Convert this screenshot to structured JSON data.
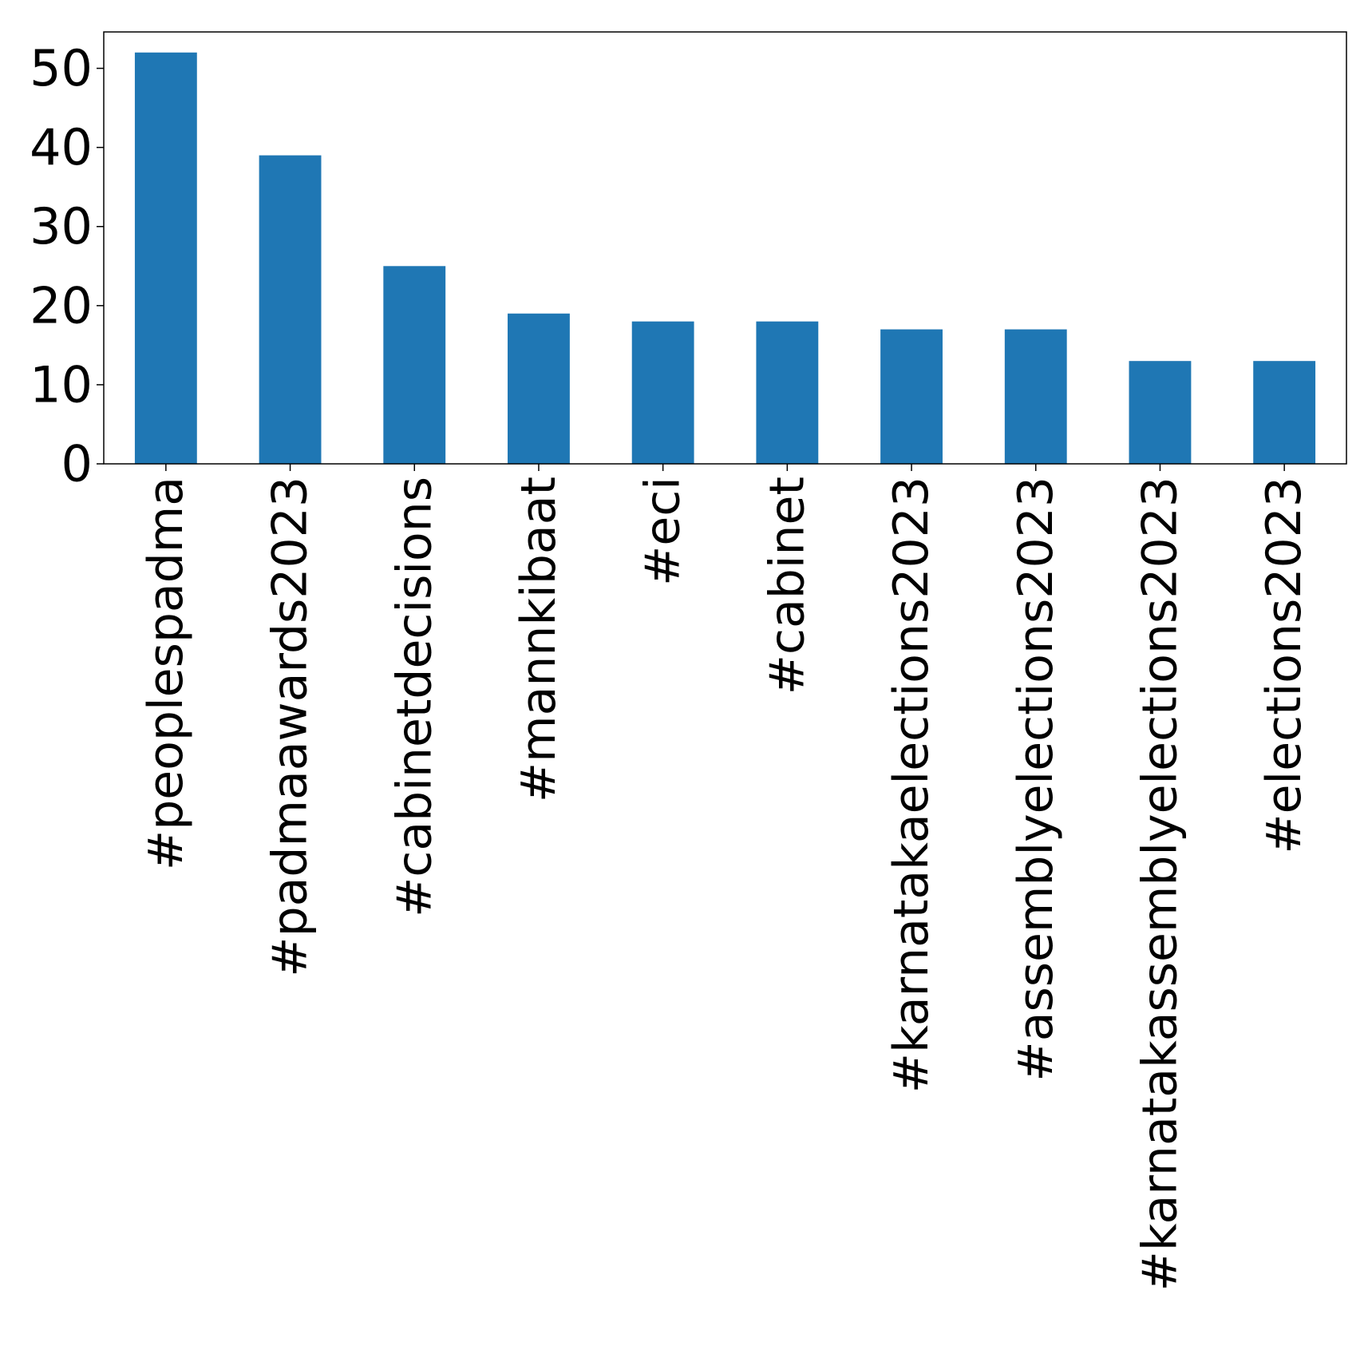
{
  "chart_data": {
    "type": "bar",
    "categories": [
      "#peoplespadma",
      "#padmaawards2023",
      "#cabinetdecisions",
      "#mannkibaat",
      "#eci",
      "#cabinet",
      "#karnatakaelections2023",
      "#assemblyelections2023",
      "#karnatakassemblyelections2023",
      "#elections2023"
    ],
    "values": [
      52,
      39,
      25,
      19,
      18,
      18,
      17,
      17,
      13,
      13
    ],
    "yticks": [
      0,
      10,
      20,
      30,
      40,
      50
    ],
    "ylim": [
      0,
      54.6
    ],
    "title": "",
    "xlabel": "",
    "ylabel": "",
    "grid": false,
    "legend": "none",
    "colors": {
      "bar": "#1f77b4",
      "axis": "#000000",
      "background": "#ffffff"
    }
  }
}
